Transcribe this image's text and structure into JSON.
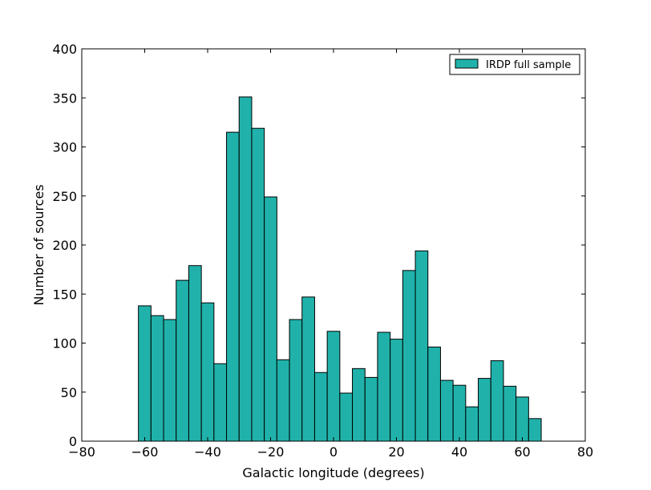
{
  "chart_data": {
    "type": "bar",
    "xlabel": "Galactic longitude (degrees)",
    "ylabel": "Number of sources",
    "xlim": [
      -80,
      80
    ],
    "ylim": [
      0,
      400
    ],
    "xticks": [
      -80,
      -60,
      -40,
      -20,
      0,
      20,
      40,
      60,
      80
    ],
    "yticks": [
      0,
      50,
      100,
      150,
      200,
      250,
      300,
      350,
      400
    ],
    "xtick_labels": [
      "−80",
      "−60",
      "−40",
      "−20",
      "0",
      "20",
      "40",
      "60",
      "80"
    ],
    "ytick_labels": [
      "0",
      "50",
      "100",
      "150",
      "200",
      "250",
      "300",
      "350",
      "400"
    ],
    "grid": false,
    "legend_position": "top-right",
    "colors": {
      "bar_fill": "#20b2aa",
      "bar_edge": "#000000"
    },
    "series": [
      {
        "name": "IRDP full sample",
        "bin_start": -62,
        "bin_width": 4,
        "values": [
          138,
          128,
          124,
          164,
          179,
          141,
          79,
          315,
          351,
          319,
          249,
          83,
          124,
          147,
          70,
          112,
          49,
          74,
          65,
          111,
          104,
          174,
          194,
          96,
          62,
          57,
          35,
          64,
          82,
          56,
          45,
          23
        ]
      }
    ]
  }
}
